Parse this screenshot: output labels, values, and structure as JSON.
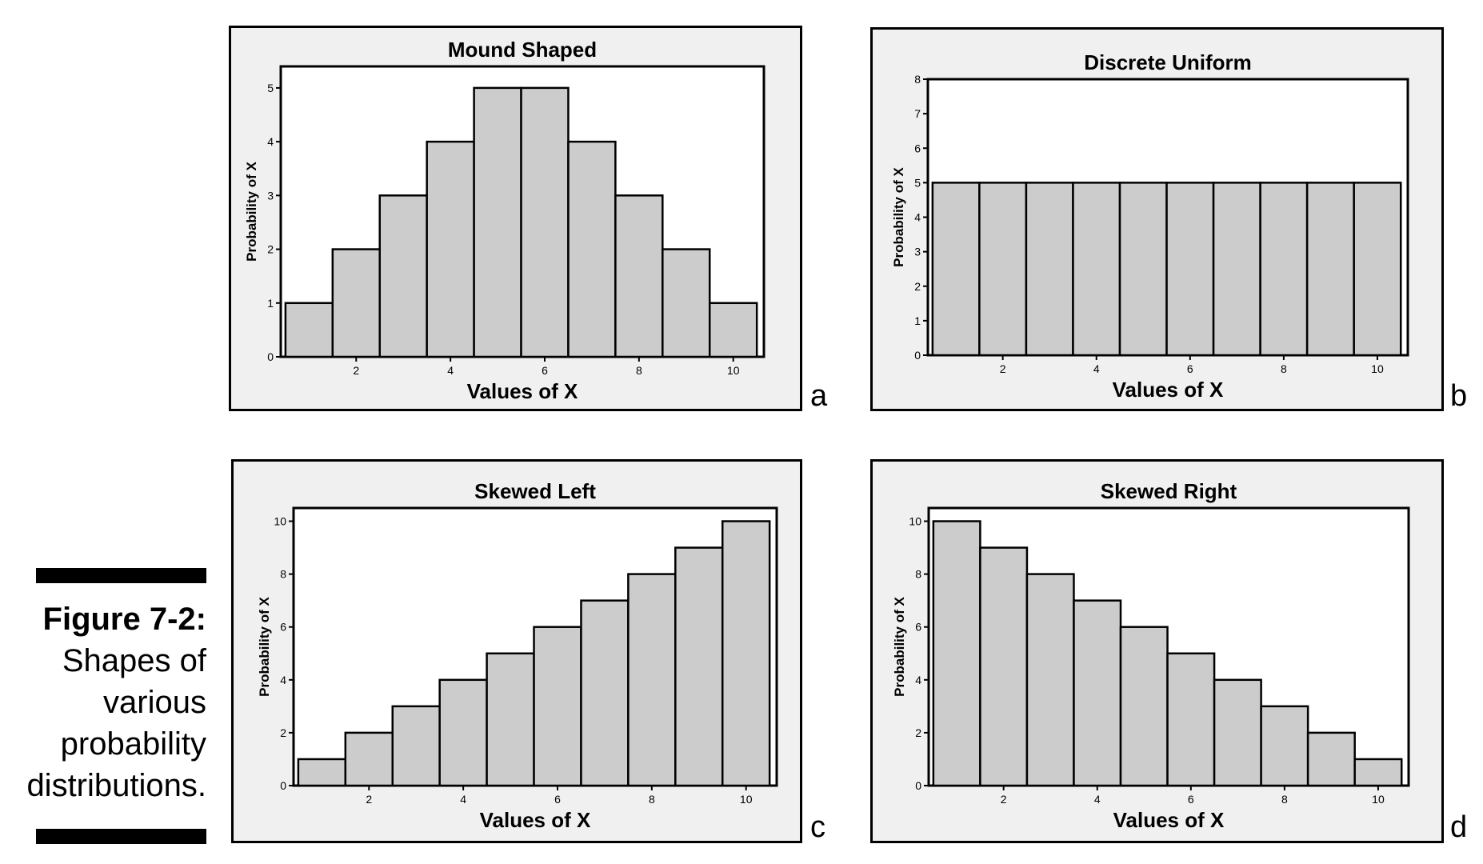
{
  "caption": {
    "label": "Figure 7-2:",
    "lines": [
      "Shapes of",
      "various",
      "probability",
      "distributions."
    ]
  },
  "panel_letters": [
    "a",
    "b",
    "c",
    "d"
  ],
  "colors": {
    "bar_fill": "#cccccc",
    "panel_bg": "#f0f0f0",
    "plot_bg": "#ffffff",
    "ink": "#000000"
  },
  "chart_data": [
    {
      "type": "bar",
      "title": "Mound Shaped",
      "xlabel": "Values of X",
      "ylabel": "Probability of X",
      "categories": [
        1,
        2,
        3,
        4,
        5,
        6,
        7,
        8,
        9,
        10
      ],
      "values": [
        1,
        2,
        3,
        4,
        5,
        5,
        4,
        3,
        2,
        1
      ],
      "xticks": [
        2,
        4,
        6,
        8,
        10
      ],
      "yticks": [
        0,
        1,
        2,
        3,
        4,
        5
      ],
      "ylim": [
        0,
        5.4
      ],
      "grid": false
    },
    {
      "type": "bar",
      "title": "Discrete Uniform",
      "xlabel": "Values of X",
      "ylabel": "Probability of X",
      "categories": [
        1,
        2,
        3,
        4,
        5,
        6,
        7,
        8,
        9,
        10
      ],
      "values": [
        5,
        5,
        5,
        5,
        5,
        5,
        5,
        5,
        5,
        5
      ],
      "xticks": [
        2,
        4,
        6,
        8,
        10
      ],
      "yticks": [
        0,
        1,
        2,
        3,
        4,
        5,
        6,
        7,
        8
      ],
      "ylim": [
        0,
        8
      ],
      "grid": false
    },
    {
      "type": "bar",
      "title": "Skewed Left",
      "xlabel": "Values of X",
      "ylabel": "Probability of X",
      "categories": [
        1,
        2,
        3,
        4,
        5,
        6,
        7,
        8,
        9,
        10
      ],
      "values": [
        1,
        2,
        3,
        4,
        5,
        6,
        7,
        8,
        9,
        10
      ],
      "xticks": [
        2,
        4,
        6,
        8,
        10
      ],
      "yticks": [
        0,
        2,
        4,
        6,
        8,
        10
      ],
      "ylim": [
        0,
        10.5
      ],
      "grid": false
    },
    {
      "type": "bar",
      "title": "Skewed Right",
      "xlabel": "Values of X",
      "ylabel": "Probability of X",
      "categories": [
        1,
        2,
        3,
        4,
        5,
        6,
        7,
        8,
        9,
        10
      ],
      "values": [
        10,
        9,
        8,
        7,
        6,
        5,
        4,
        3,
        2,
        1
      ],
      "xticks": [
        2,
        4,
        6,
        8,
        10
      ],
      "yticks": [
        0,
        2,
        4,
        6,
        8,
        10
      ],
      "ylim": [
        0,
        10.5
      ],
      "grid": false
    }
  ]
}
